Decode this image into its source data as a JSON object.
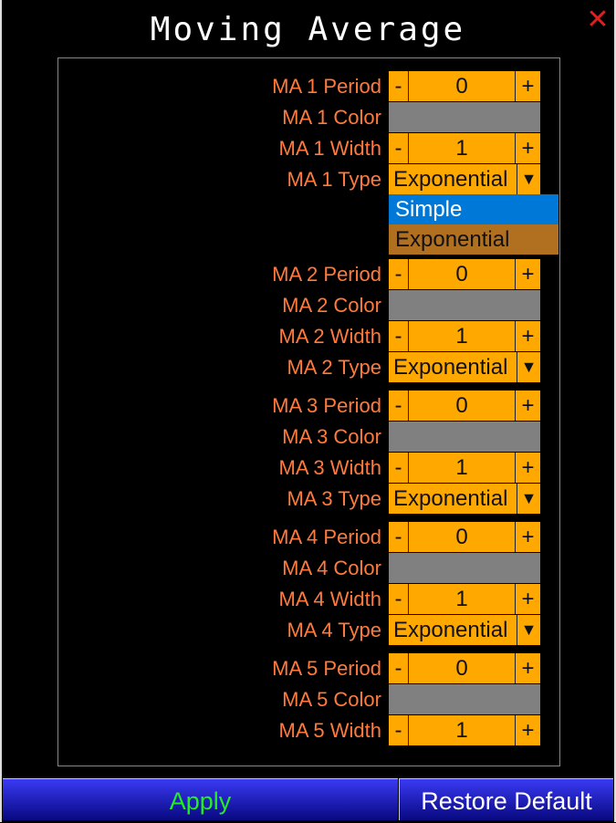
{
  "title": "Moving Average",
  "close_icon": "close-x-icon",
  "colors": {
    "label": "#ff7a3c",
    "control": "#ffa800",
    "swatch": "#808080",
    "option_highlight": "#0078d7",
    "option_selected": "#b07020",
    "apply_text": "#22ee22"
  },
  "groups": [
    {
      "period_label": "MA 1 Period",
      "period": "0",
      "color_label": "MA 1 Color",
      "width_label": "MA 1 Width",
      "width": "1",
      "type_label": "MA 1 Type",
      "type": "Exponential"
    },
    {
      "period_label": "MA 2 Period",
      "period": "0",
      "color_label": "MA 2 Color",
      "width_label": "MA 2 Width",
      "width": "1",
      "type_label": "MA 2 Type",
      "type": "Exponential"
    },
    {
      "period_label": "MA 3 Period",
      "period": "0",
      "color_label": "MA 3 Color",
      "width_label": "MA 3 Width",
      "width": "1",
      "type_label": "MA 3 Type",
      "type": "Exponential"
    },
    {
      "period_label": "MA 4 Period",
      "period": "0",
      "color_label": "MA 4 Color",
      "width_label": "MA 4 Width",
      "width": "1",
      "type_label": "MA 4 Type",
      "type": "Exponential"
    },
    {
      "period_label": "MA 5 Period",
      "period": "0",
      "color_label": "MA 5 Color",
      "width_label": "MA 5 Width",
      "width": "1"
    }
  ],
  "minus": "-",
  "plus": "+",
  "arrow": "▼",
  "dropdown_options": [
    "Simple",
    "Exponential"
  ],
  "buttons": {
    "apply": "Apply",
    "restore": "Restore Default"
  }
}
